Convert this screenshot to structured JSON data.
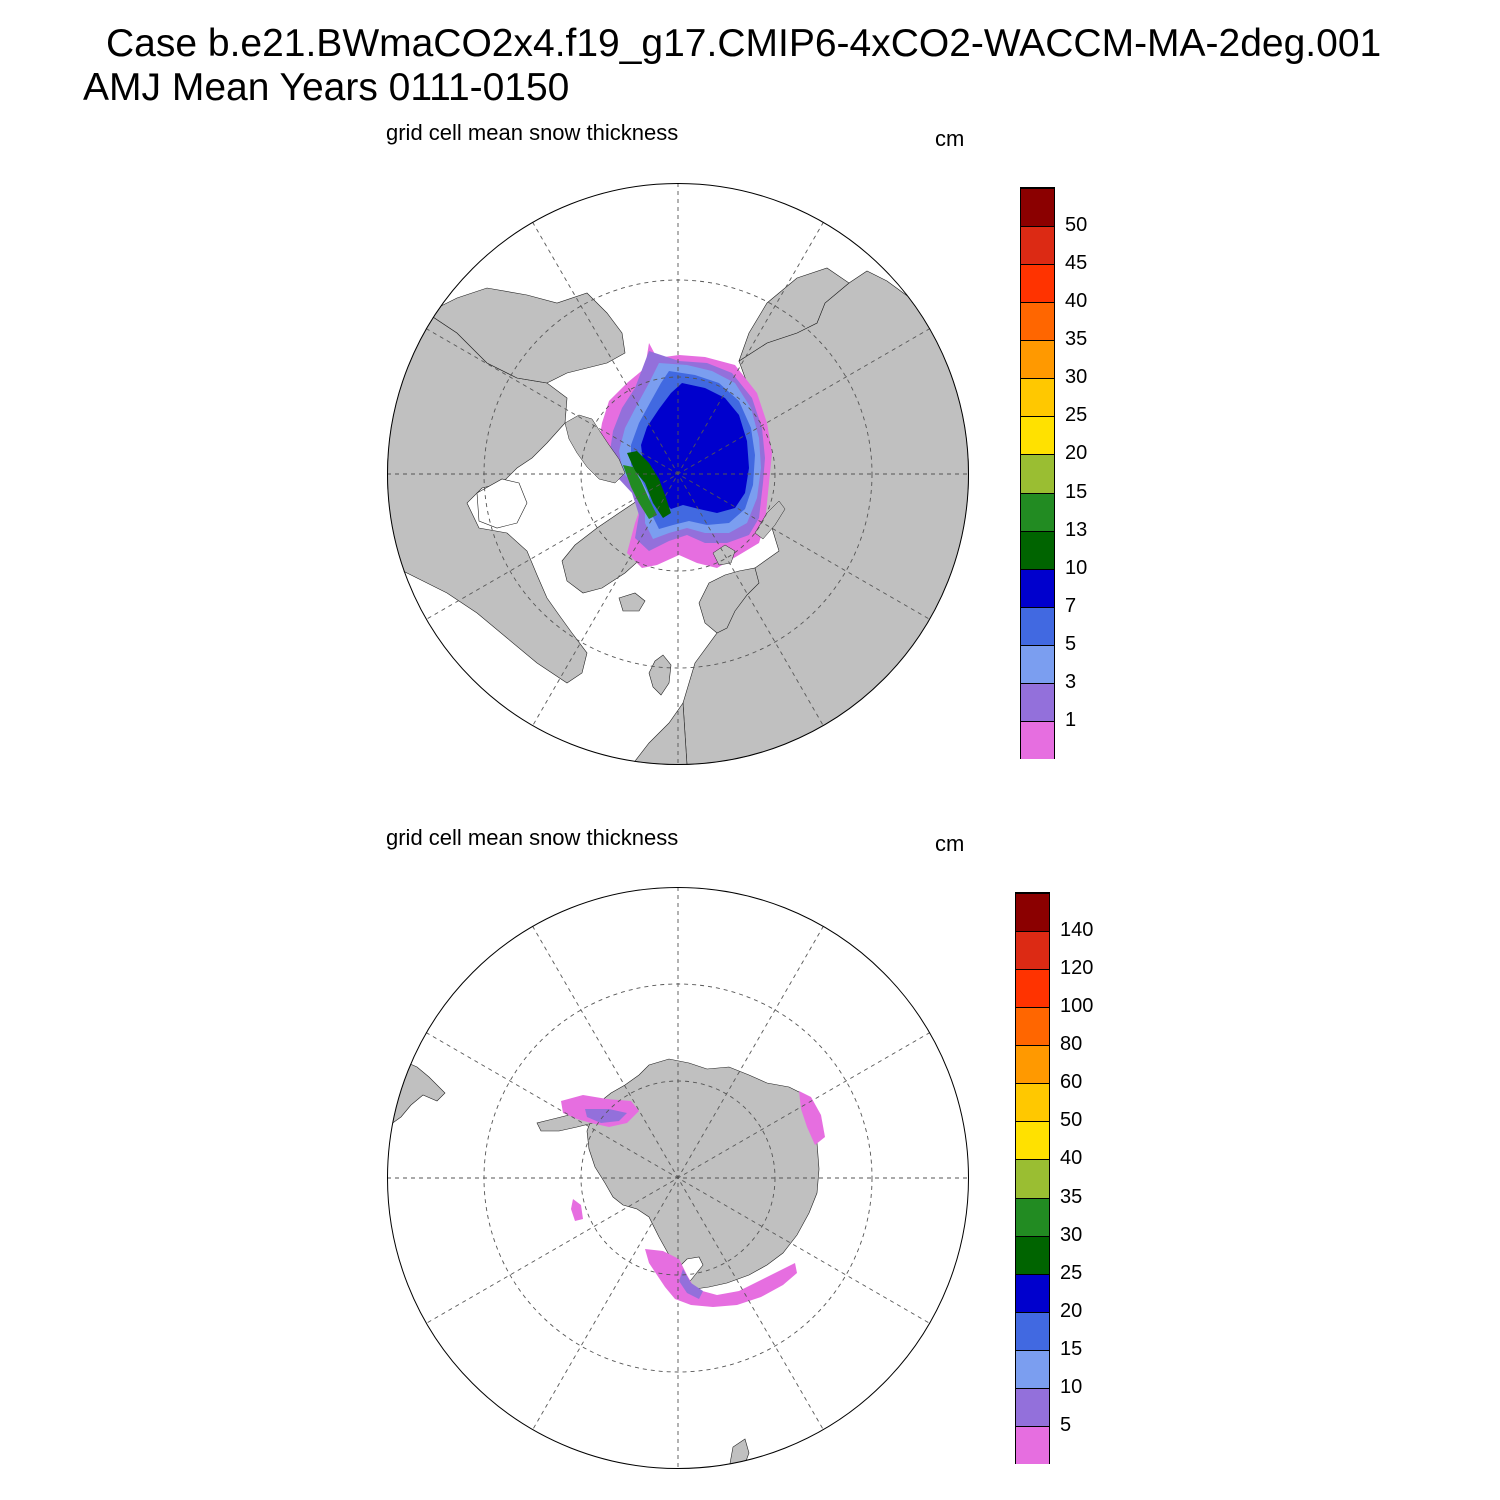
{
  "header": {
    "line1": "Case b.e21.BWmaCO2x4.f19_g17.CMIP6-4xCO2-WACCM-MA-2deg.001",
    "line2": "AMJ Mean   Years 0111-0150"
  },
  "colors": {
    "land": "#c0c0c0",
    "ocean": "#ffffff",
    "grid_line": "#555555"
  },
  "panels": [
    {
      "hemisphere": "north",
      "title": "grid cell mean snow thickness",
      "units": "cm",
      "colorbar": {
        "labels": [
          "1",
          "3",
          "5",
          "7",
          "10",
          "13",
          "15",
          "20",
          "25",
          "30",
          "35",
          "40",
          "45",
          "50"
        ],
        "colors": [
          "#e66ee0",
          "#9370db",
          "#7b9ef0",
          "#4169e1",
          "#0000cd",
          "#006400",
          "#228b22",
          "#9abe32",
          "#ffe100",
          "#ffc800",
          "#ff9900",
          "#ff6600",
          "#ff3300",
          "#dc2a14",
          "#8b0000"
        ]
      }
    },
    {
      "hemisphere": "south",
      "title": "grid cell mean snow thickness",
      "units": "cm",
      "colorbar": {
        "labels": [
          "5",
          "10",
          "15",
          "20",
          "25",
          "30",
          "35",
          "40",
          "50",
          "60",
          "80",
          "100",
          "120",
          "140"
        ],
        "colors": [
          "#e66ee0",
          "#9370db",
          "#7b9ef0",
          "#4169e1",
          "#0000cd",
          "#006400",
          "#228b22",
          "#9abe32",
          "#ffe100",
          "#ffc800",
          "#ff9900",
          "#ff6600",
          "#ff3300",
          "#dc2a14",
          "#8b0000"
        ]
      }
    }
  ]
}
